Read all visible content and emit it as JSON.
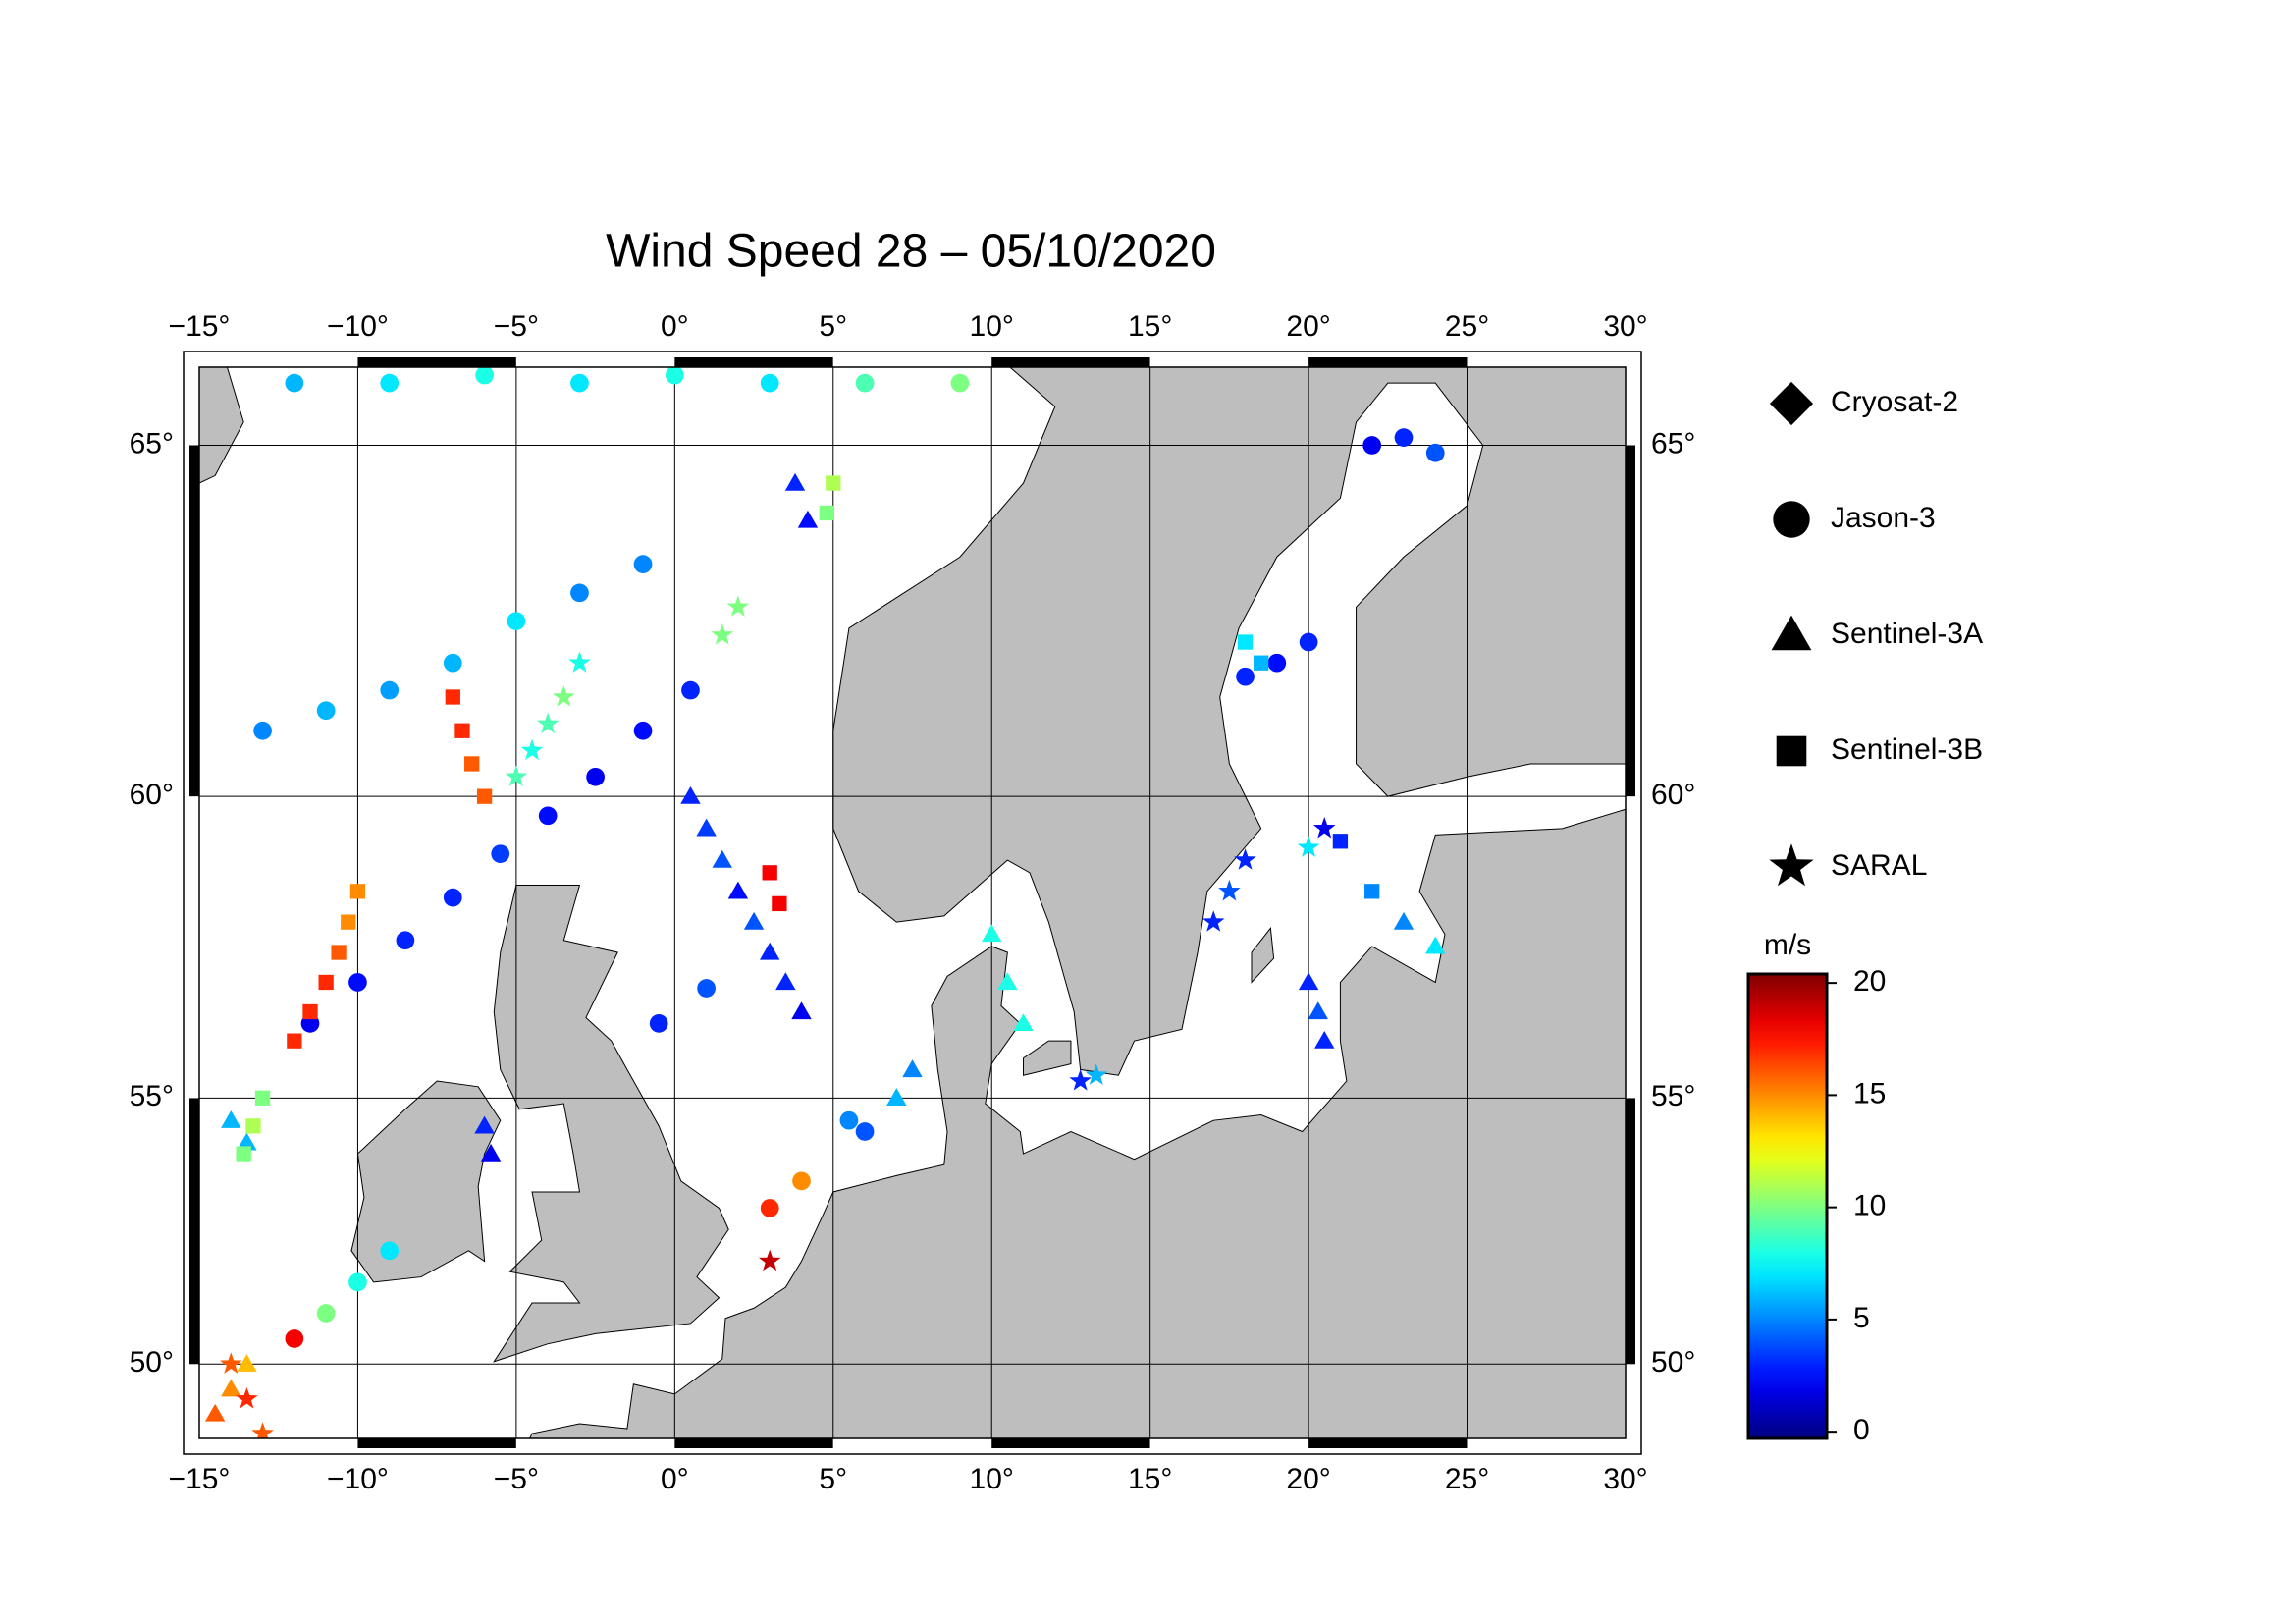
{
  "chart_data": {
    "type": "scatter",
    "title": "Wind Speed 28 – 05/10/2020",
    "projection": "mercator",
    "land_color": "#bebebe",
    "xlim": [
      -15,
      30
    ],
    "ylim": [
      48.5,
      66.0
    ],
    "xticks": [
      {
        "value": -15,
        "label": "−15°"
      },
      {
        "value": -10,
        "label": "−10°"
      },
      {
        "value": -5,
        "label": "−5°"
      },
      {
        "value": 0,
        "label": "0°"
      },
      {
        "value": 5,
        "label": "5°"
      },
      {
        "value": 10,
        "label": "10°"
      },
      {
        "value": 15,
        "label": "15°"
      },
      {
        "value": 20,
        "label": "20°"
      },
      {
        "value": 25,
        "label": "25°"
      },
      {
        "value": 30,
        "label": "30°"
      }
    ],
    "yticks": [
      {
        "value": 50,
        "label": "50°"
      },
      {
        "value": 55,
        "label": "55°"
      },
      {
        "value": 60,
        "label": "60°"
      },
      {
        "value": 65,
        "label": "65°"
      }
    ],
    "grid": true,
    "colorbar": {
      "label": "m/s",
      "colormap": "jet",
      "lim": [
        -0.3,
        20.4
      ],
      "ticks": [
        0,
        5,
        10,
        15,
        20
      ]
    },
    "series": [
      {
        "name": "Cryosat-2",
        "marker": "diamond",
        "x": [],
        "y": [],
        "values": []
      },
      {
        "name": "Jason-3",
        "marker": "circle",
        "x": [
          -11.5,
          -10,
          -8.5,
          -7,
          -5.5,
          -4,
          -2.5,
          -1,
          0.5,
          -12,
          -9,
          -6,
          -3,
          0,
          3,
          6,
          9,
          -13,
          -11,
          -9,
          -7,
          -5,
          -3,
          -1,
          18,
          19,
          20,
          22,
          23,
          24,
          -0.5,
          1,
          3,
          4,
          5.5,
          6,
          -12,
          -11,
          -10,
          -9
        ],
        "y": [
          56.3,
          57.0,
          57.7,
          58.4,
          59.1,
          59.7,
          60.3,
          61.0,
          61.6,
          65.8,
          65.8,
          65.9,
          65.8,
          65.9,
          65.8,
          65.8,
          65.8,
          61.0,
          61.3,
          61.6,
          62.0,
          62.6,
          63.0,
          63.4,
          61.8,
          62.0,
          62.3,
          65.0,
          65.1,
          64.9,
          56.3,
          56.9,
          53.0,
          53.5,
          54.6,
          54.4,
          50.5,
          51.0,
          51.6,
          52.2
        ],
        "values": [
          2,
          2.5,
          3,
          3,
          3.5,
          2.5,
          2,
          2.5,
          3,
          6,
          7,
          8,
          7,
          8,
          7,
          9,
          10,
          5,
          6,
          5.5,
          6,
          7,
          5,
          5,
          3,
          2.5,
          3,
          2,
          3,
          4,
          3,
          4,
          17,
          15,
          5,
          4,
          18,
          10,
          8,
          7
        ]
      },
      {
        "name": "Sentinel-3A",
        "marker": "triangle",
        "x": [
          0.5,
          1,
          1.5,
          2,
          2.5,
          3,
          3.5,
          4,
          -14.5,
          -14,
          -13.5,
          20,
          20.3,
          20.5,
          10,
          10.5,
          11,
          23,
          24,
          -6,
          -5.8,
          7.5,
          7,
          -14,
          -13.5,
          3.8,
          4.2
        ],
        "y": [
          60,
          59.5,
          59,
          58.5,
          58,
          57.5,
          57,
          56.5,
          49,
          49.5,
          50,
          57,
          56.5,
          56,
          57.8,
          57,
          56.3,
          58,
          57.6,
          54.5,
          54,
          55.5,
          55,
          54.6,
          54.2,
          64.5,
          64
        ],
        "values": [
          3,
          3.5,
          4,
          2.5,
          4,
          3,
          3,
          2,
          16,
          15,
          14,
          3,
          4,
          3,
          8,
          8,
          8,
          5,
          7,
          3,
          2,
          5,
          6,
          6,
          6,
          3,
          2.5
        ]
      },
      {
        "name": "Sentinel-3B",
        "marker": "square",
        "x": [
          -10,
          -10.3,
          -10.6,
          -11,
          -11.5,
          -12,
          -7,
          -6.7,
          -6.4,
          -6,
          3,
          3.3,
          18,
          18.5,
          21,
          22,
          -13,
          -13.3,
          -13.6,
          5,
          4.8
        ],
        "y": [
          58.5,
          58,
          57.5,
          57,
          56.5,
          56,
          61.5,
          61,
          60.5,
          60,
          58.8,
          58.3,
          62.3,
          62,
          59.3,
          58.5,
          55,
          54.5,
          54,
          64.5,
          64.1
        ],
        "values": [
          15,
          15,
          16,
          17,
          17,
          17,
          17,
          17,
          16,
          16,
          18,
          18,
          7,
          6,
          3,
          5,
          10,
          11,
          10,
          11,
          10
        ]
      },
      {
        "name": "SARAL",
        "marker": "star",
        "x": [
          -5,
          -4.5,
          -4,
          -3.5,
          -3,
          17,
          17.5,
          18,
          3,
          -14,
          -13.5,
          -13,
          20,
          20.5,
          12.8,
          13.3,
          1.5,
          2
        ],
        "y": [
          60.3,
          60.7,
          61.1,
          61.5,
          62,
          58,
          58.5,
          59,
          52,
          50,
          49.3,
          48.6,
          59.2,
          59.5,
          55.3,
          55.4,
          62.4,
          62.8
        ],
        "values": [
          9,
          8,
          9,
          10,
          8,
          3,
          4,
          3,
          19,
          16,
          17,
          16,
          7,
          2,
          3,
          6,
          10,
          10
        ]
      }
    ]
  }
}
